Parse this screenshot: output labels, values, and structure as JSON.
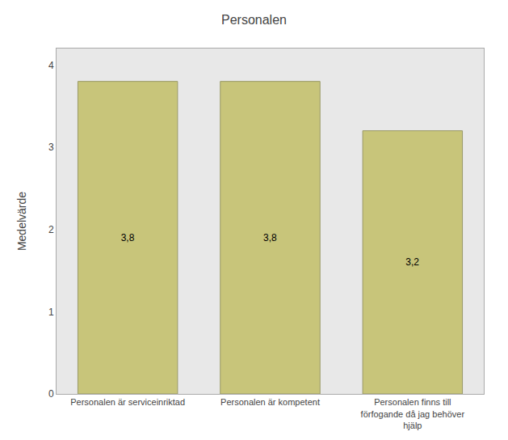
{
  "chart_data": {
    "type": "bar",
    "title": "Personalen",
    "ylabel": "Medelvärde",
    "categories": [
      "Personalen är serviceinriktad",
      "Personalen är kompetent",
      "Personalen finns till\nförfogande då jag behöver\nhjälp"
    ],
    "values": [
      3.8,
      3.8,
      3.2
    ],
    "value_labels": [
      "3,8",
      "3,8",
      "3,2"
    ],
    "data_labels": true,
    "color": "#c8c57a",
    "ylim": [
      0,
      4.2
    ],
    "yticks": [
      0,
      1,
      2,
      3,
      4
    ],
    "grid": false
  }
}
